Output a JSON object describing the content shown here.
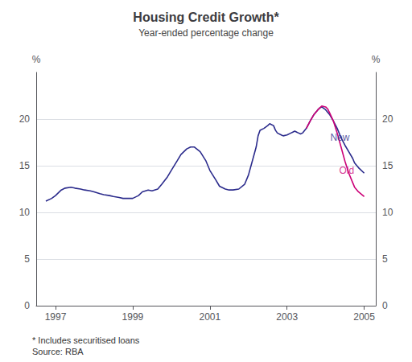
{
  "chart_data": {
    "type": "line",
    "title": "Housing Credit Growth*",
    "subtitle": "Year-ended percentage change",
    "ylabel": "%",
    "y2label": "%",
    "footnotes": [
      "* Includes securitised loans",
      "Source: RBA"
    ],
    "xlim": [
      1996.5,
      2005.3
    ],
    "xticks": [
      1997,
      1999,
      2001,
      2003,
      2005
    ],
    "ylim": [
      0,
      25
    ],
    "yticks": [
      0,
      5,
      10,
      15,
      20
    ],
    "y2lim": [
      0,
      25
    ],
    "y2ticks": [
      0,
      5,
      10,
      15,
      20
    ],
    "grid": true,
    "series": [
      {
        "name": "New",
        "color": "#2B2B8C",
        "x": [
          1996.75,
          1996.9,
          1997.0,
          1997.15,
          1997.25,
          1997.4,
          1997.5,
          1997.65,
          1997.75,
          1997.9,
          1998.0,
          1998.15,
          1998.25,
          1998.4,
          1998.5,
          1998.65,
          1998.75,
          1998.9,
          1999.0,
          1999.15,
          1999.25,
          1999.4,
          1999.5,
          1999.65,
          1999.75,
          1999.9,
          2000.0,
          2000.15,
          2000.25,
          2000.4,
          2000.5,
          2000.6,
          2000.75,
          2000.9,
          2001.0,
          2001.15,
          2001.25,
          2001.4,
          2001.5,
          2001.6,
          2001.75,
          2001.9,
          2002.0,
          2002.1,
          2002.2,
          2002.25,
          2002.3,
          2002.4,
          2002.5,
          2002.55,
          2002.6,
          2002.65,
          2002.7,
          2002.75,
          2002.85,
          2002.9,
          2003.0,
          2003.1,
          2003.15,
          2003.2,
          2003.25,
          2003.3,
          2003.35,
          2003.4,
          2003.5,
          2003.6,
          2003.7,
          2003.8,
          2003.85,
          2003.9,
          2004.0,
          2004.1,
          2004.2,
          2004.3,
          2004.4,
          2004.5,
          2004.6,
          2004.7,
          2004.75,
          2004.85,
          2005.0
        ],
        "values": [
          11.2,
          11.5,
          11.8,
          12.4,
          12.6,
          12.7,
          12.6,
          12.5,
          12.4,
          12.3,
          12.2,
          12.0,
          11.9,
          11.8,
          11.7,
          11.6,
          11.5,
          11.5,
          11.5,
          11.8,
          12.2,
          12.4,
          12.3,
          12.5,
          13.0,
          13.8,
          14.5,
          15.5,
          16.2,
          16.8,
          17.0,
          17.0,
          16.5,
          15.5,
          14.5,
          13.5,
          12.8,
          12.5,
          12.4,
          12.4,
          12.5,
          13.0,
          14.0,
          15.5,
          17.0,
          18.2,
          18.8,
          19.0,
          19.3,
          19.5,
          19.4,
          19.3,
          18.8,
          18.5,
          18.3,
          18.2,
          18.3,
          18.5,
          18.6,
          18.7,
          18.6,
          18.5,
          18.4,
          18.5,
          19.0,
          19.8,
          20.5,
          21.0,
          21.2,
          21.3,
          21.0,
          20.5,
          19.8,
          19.0,
          18.0,
          17.2,
          16.5,
          15.8,
          15.3,
          14.8,
          14.2
        ]
      },
      {
        "name": "Old",
        "color": "#CC0077",
        "x": [
          2003.5,
          2003.6,
          2003.7,
          2003.8,
          2003.85,
          2003.9,
          2004.0,
          2004.05,
          2004.1,
          2004.2,
          2004.3,
          2004.4,
          2004.5,
          2004.6,
          2004.7,
          2004.75,
          2004.85,
          2005.0
        ],
        "values": [
          19.0,
          19.8,
          20.5,
          21.0,
          21.2,
          21.4,
          21.3,
          21.1,
          20.7,
          19.8,
          18.5,
          17.0,
          15.5,
          14.2,
          13.2,
          12.7,
          12.2,
          11.7
        ]
      }
    ],
    "annotations": [
      {
        "text": "New",
        "x": 2004.12,
        "y": 18.0,
        "color": "#2B2B8C"
      },
      {
        "text": "Old",
        "x": 2004.35,
        "y": 14.5,
        "color": "#CC0077"
      }
    ]
  }
}
